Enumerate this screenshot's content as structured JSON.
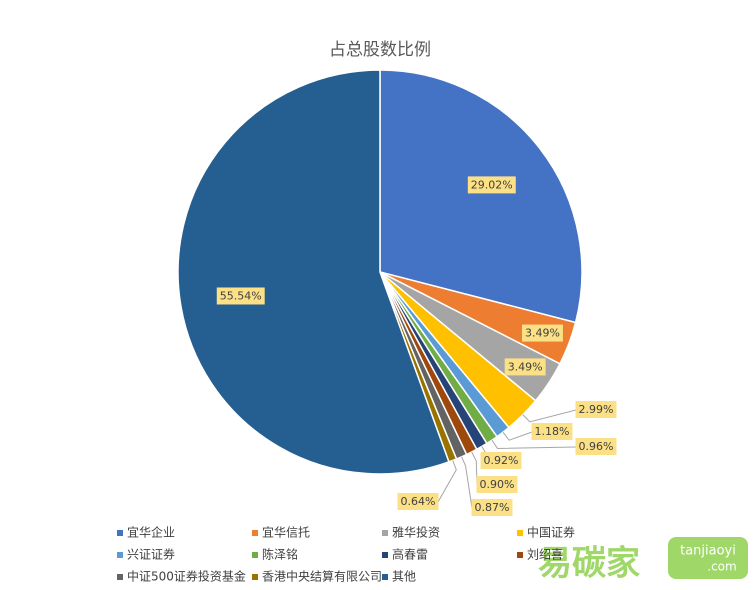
{
  "chart_data": {
    "type": "pie",
    "title": "占总股数比例",
    "categories": [
      "宜华企业",
      "宜华信托",
      "雅华投资",
      "中国证券",
      "兴证证券",
      "陈泽铭",
      "高春雷",
      "刘绍喜",
      "中证500证券投资基金",
      "香港中央结算有限公司",
      "其他"
    ],
    "values": [
      29.02,
      3.49,
      3.49,
      2.99,
      1.18,
      0.96,
      0.92,
      0.9,
      0.87,
      0.64,
      55.54
    ],
    "value_labels": [
      "29.02%",
      "3.49%",
      "3.49%",
      "2.99%",
      "1.18%",
      "0.96%",
      "0.92%",
      "0.90%",
      "0.87%",
      "0.64%",
      "55.54%"
    ],
    "colors": [
      "#4472c4",
      "#ed7d31",
      "#a5a5a5",
      "#ffc000",
      "#5b9bd5",
      "#70ad47",
      "#264478",
      "#9e480e",
      "#636363",
      "#997300",
      "#255e91"
    ],
    "legend": "bottom",
    "watermark": {
      "brand": "易碳家",
      "site": "tanjiaoyi",
      "domain": ".com"
    }
  }
}
